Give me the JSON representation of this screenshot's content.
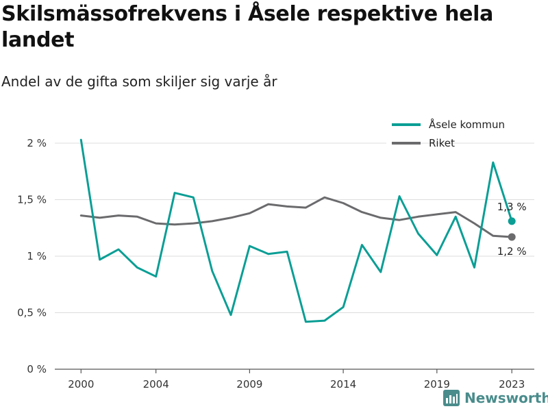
{
  "title": "Skilsmässofrekvens i Åsele respektive hela landet",
  "subtitle": "Andel av de gifta som skiljer sig varje år",
  "brand": "Newsworthy",
  "colors": {
    "asele": "#0a9e95",
    "riket": "#6b6b6e",
    "grid": "#dcdcdc",
    "axis": "#555555"
  },
  "chart_data": {
    "type": "line",
    "x": [
      2000,
      2001,
      2002,
      2003,
      2004,
      2005,
      2006,
      2007,
      2008,
      2009,
      2010,
      2011,
      2012,
      2013,
      2014,
      2015,
      2016,
      2017,
      2018,
      2019,
      2020,
      2021,
      2022,
      2023
    ],
    "series": [
      {
        "name": "Åsele kommun",
        "color": "#0a9e95",
        "values": [
          2.03,
          0.97,
          1.06,
          0.9,
          0.82,
          1.56,
          1.52,
          0.87,
          0.48,
          1.09,
          1.02,
          1.04,
          0.42,
          0.43,
          0.55,
          1.1,
          0.86,
          1.53,
          1.2,
          1.01,
          1.35,
          0.9,
          1.83,
          1.31
        ],
        "end_label": "1,3 %"
      },
      {
        "name": "Riket",
        "color": "#6b6b6e",
        "values": [
          1.36,
          1.34,
          1.36,
          1.35,
          1.29,
          1.28,
          1.29,
          1.31,
          1.34,
          1.38,
          1.46,
          1.44,
          1.43,
          1.52,
          1.47,
          1.39,
          1.34,
          1.32,
          1.35,
          1.37,
          1.39,
          1.29,
          1.18,
          1.17
        ],
        "end_label": "1,2 %"
      }
    ],
    "x_ticks": [
      2000,
      2004,
      2009,
      2014,
      2019,
      2023
    ],
    "x_tick_labels": [
      "2000",
      "2004",
      "2009",
      "2014",
      "2019",
      "2023"
    ],
    "y_ticks": [
      0,
      0.5,
      1,
      1.5,
      2
    ],
    "y_tick_labels": [
      "0 %",
      "0,5 %",
      "1 %",
      "1,5 %",
      "2 %"
    ],
    "xlim": [
      1998.6,
      2024.2
    ],
    "ylim": [
      0,
      2.0
    ],
    "grid": "horizontal",
    "legend": "top-right"
  }
}
